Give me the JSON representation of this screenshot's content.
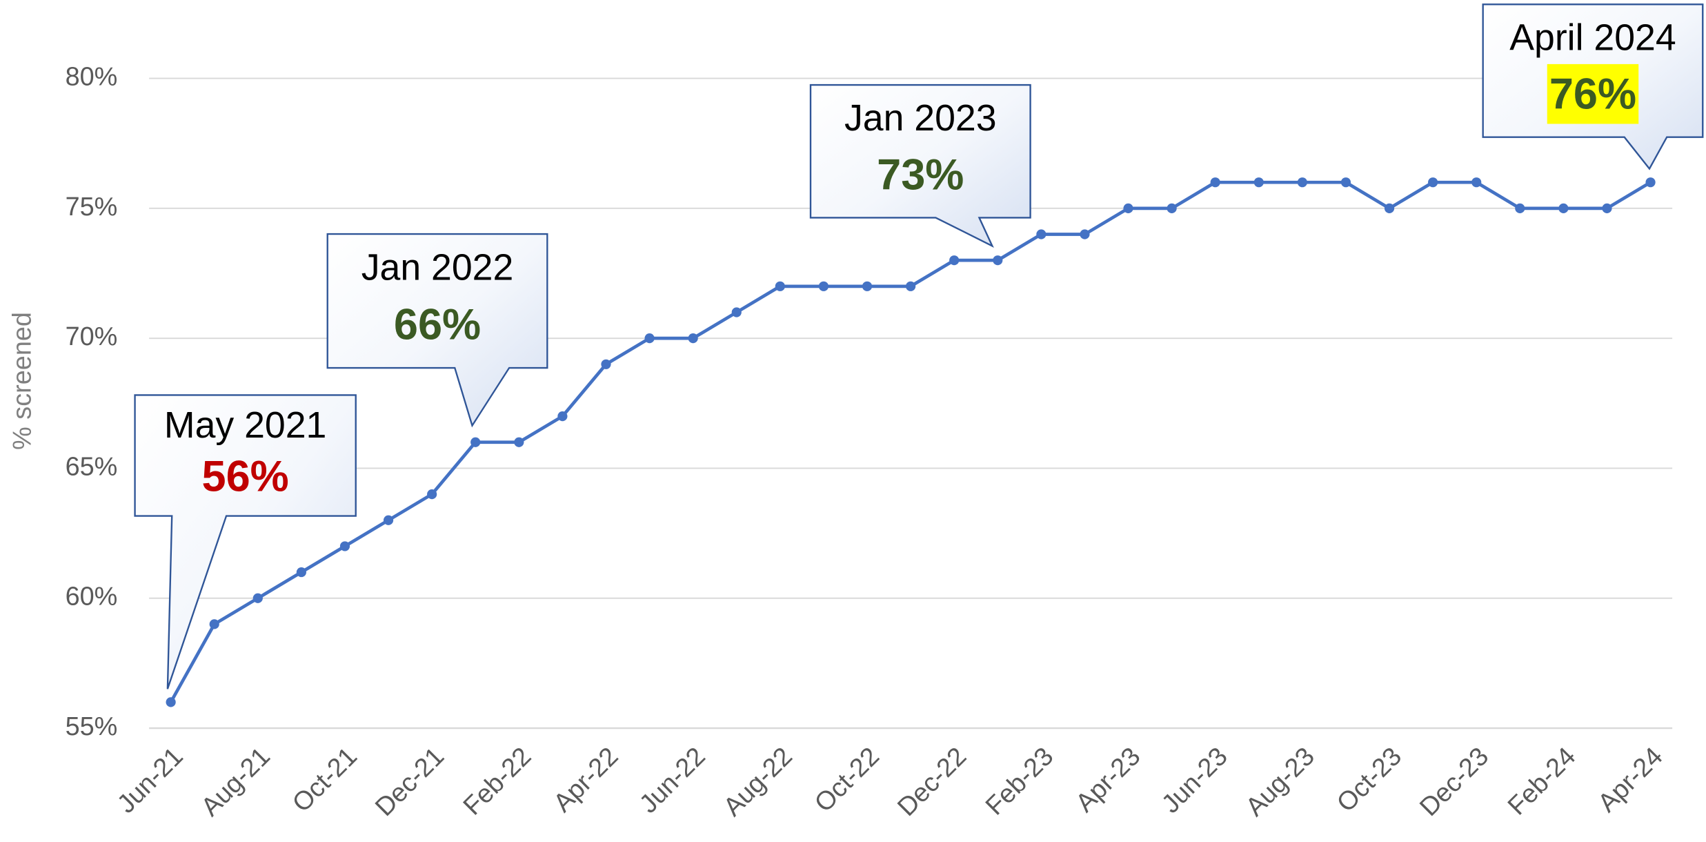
{
  "chart_data": {
    "type": "line",
    "y_label": "% screened",
    "categories": [
      "Jun-21",
      null,
      "Aug-21",
      null,
      "Oct-21",
      null,
      "Dec-21",
      null,
      "Feb-22",
      null,
      "Apr-22",
      null,
      "Jun-22",
      null,
      "Aug-22",
      null,
      "Oct-22",
      null,
      "Dec-22",
      null,
      "Feb-23",
      null,
      "Apr-23",
      null,
      "Jun-23",
      null,
      "Aug-23",
      null,
      "Oct-23",
      null,
      "Dec-23",
      null,
      "Feb-24",
      null,
      "Apr-24"
    ],
    "series": [
      {
        "name": "% screened",
        "color": "#4472c4",
        "values": [
          56,
          59,
          60,
          61,
          62,
          63,
          64,
          66,
          66,
          67,
          69,
          70,
          70,
          71,
          72,
          72,
          72,
          72,
          73,
          73,
          74,
          74,
          75,
          75,
          76,
          76,
          76,
          76,
          75,
          76,
          76,
          75,
          75,
          75,
          76
        ]
      }
    ],
    "ylim": [
      55,
      80
    ],
    "yticks": [
      {
        "value": 55,
        "label": "55%"
      },
      {
        "value": 60,
        "label": "60%"
      },
      {
        "value": 65,
        "label": "65%"
      },
      {
        "value": 70,
        "label": "70%"
      },
      {
        "value": 75,
        "label": "75%"
      },
      {
        "value": 80,
        "label": "80%"
      }
    ],
    "grid": true,
    "annotations": [
      {
        "title": "May 2021",
        "text": "56%"
      },
      {
        "title": "Jan 2022",
        "text": "66%"
      },
      {
        "title": "Jan 2023",
        "text": "73%"
      },
      {
        "title": "April 2024",
        "text": "76%"
      }
    ]
  }
}
